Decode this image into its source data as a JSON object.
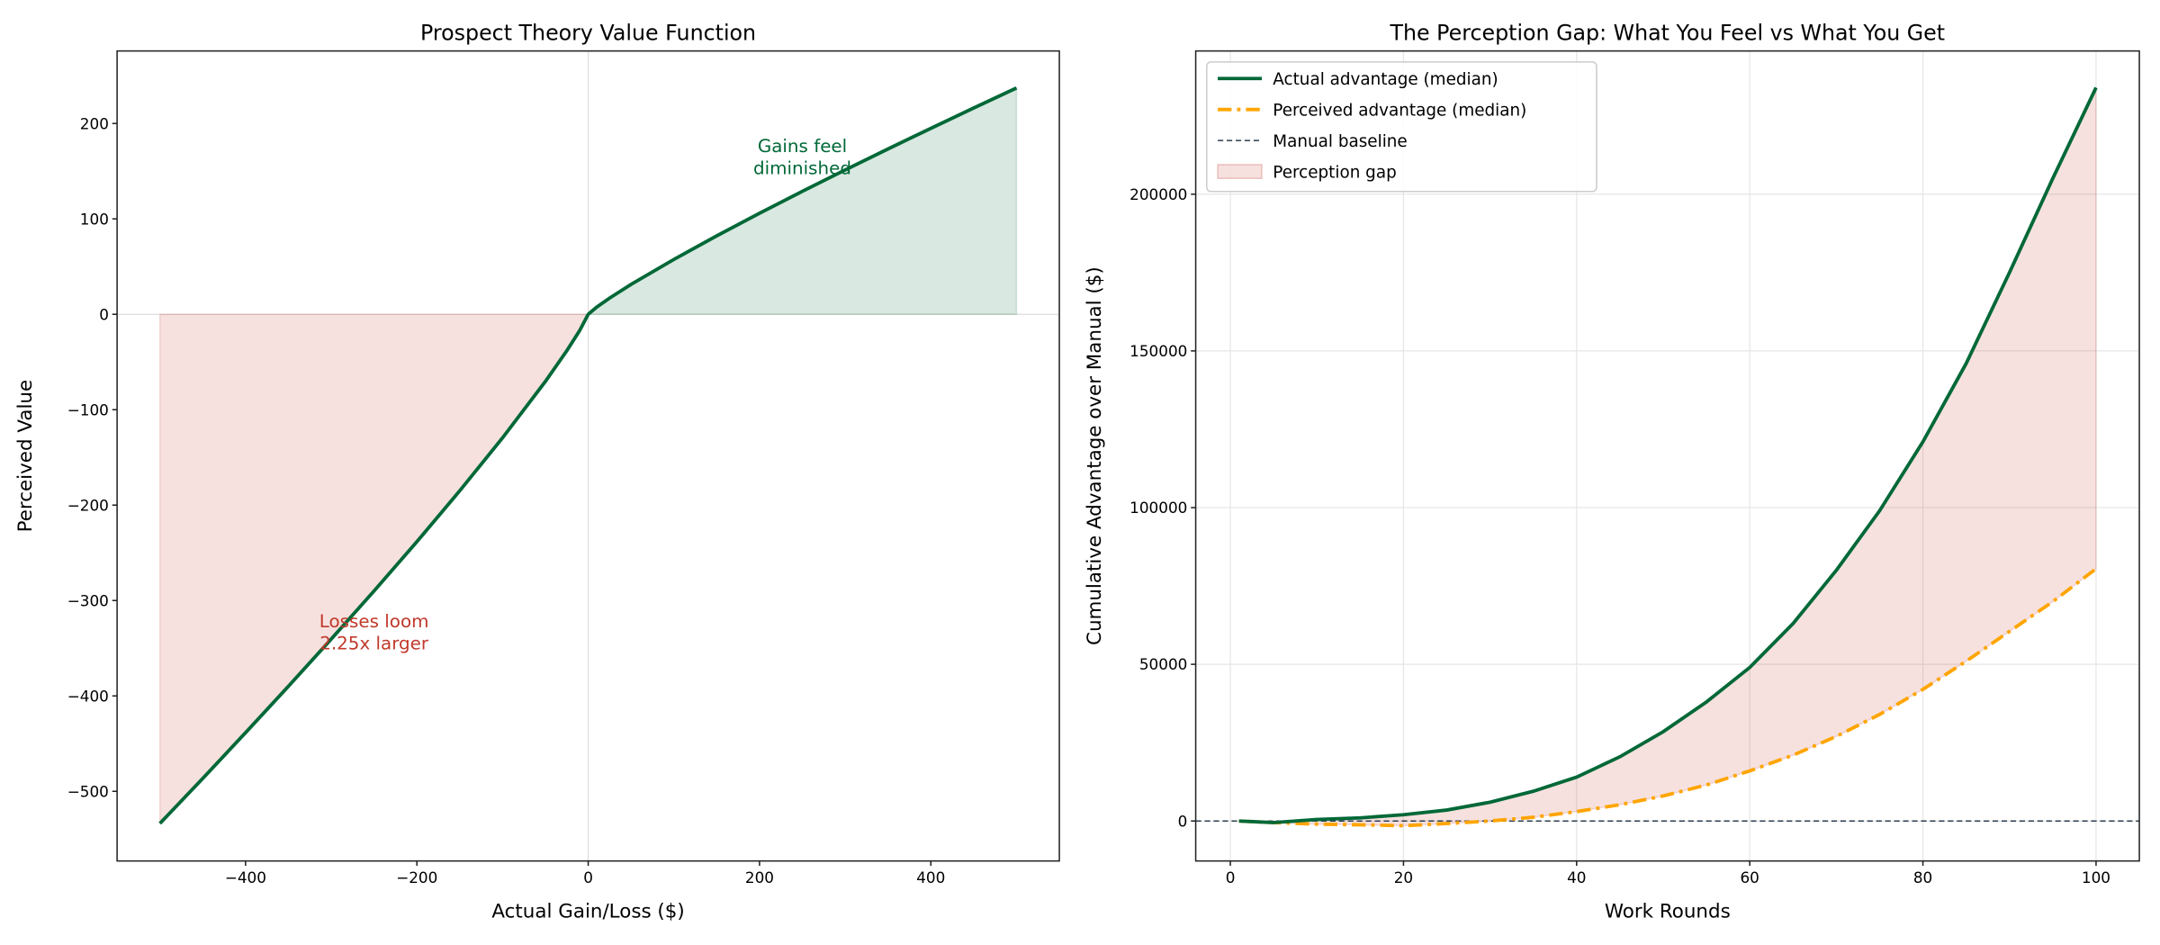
{
  "chart_data": [
    {
      "type": "line",
      "title": "Prospect Theory Value Function",
      "xlabel": "Actual Gain/Loss ($)",
      "ylabel": "Perceived Value",
      "xlim": [
        -550,
        550
      ],
      "ylim": [
        -573,
        276
      ],
      "xticks": [
        -400,
        -200,
        0,
        200,
        400
      ],
      "yticks": [
        -500,
        -400,
        -300,
        -200,
        -100,
        0,
        100,
        200
      ],
      "grid": false,
      "reference_lines": {
        "x": 0,
        "y": 0
      },
      "series": [
        {
          "x": [
            -500,
            -450,
            -400,
            -350,
            -300,
            -250,
            -200,
            -150,
            -100,
            -50,
            -25,
            -10,
            0,
            10,
            25,
            50,
            100,
            150,
            200,
            250,
            300,
            350,
            400,
            450,
            500
          ],
          "y": [
            -533.7,
            -486.5,
            -438.5,
            -389.9,
            -340.4,
            -290.0,
            -238.3,
            -185.0,
            -129.5,
            -70.4,
            -38.2,
            -17.1,
            0,
            7.6,
            17.0,
            31.3,
            57.5,
            82.2,
            105.9,
            128.9,
            151.3,
            173.3,
            194.9,
            216.2,
            237.2
          ],
          "color": "#006837"
        }
      ],
      "fills": {
        "loss_color": "#c0392b",
        "gain_color": "#006837"
      },
      "annotations": [
        {
          "text": "Gains feel\ndiminished",
          "lines": [
            "Gains feel",
            "diminished"
          ],
          "x": 250,
          "y": 170,
          "color": "#006837"
        },
        {
          "text": "Losses loom\n2.25x larger",
          "lines": [
            "Losses loom",
            "2.25x larger"
          ],
          "x": -250,
          "y": -328,
          "color": "#c0392b"
        }
      ]
    },
    {
      "type": "line",
      "title": "The Perception Gap: What You Feel vs What You Get",
      "xlabel": "Work Rounds",
      "ylabel": "Cumulative Advantage over Manual ($)",
      "xlim": [
        -4,
        105
      ],
      "ylim": [
        -12750,
        245700
      ],
      "xticks": [
        0,
        20,
        40,
        60,
        80,
        100
      ],
      "yticks": [
        0,
        50000,
        100000,
        150000,
        200000
      ],
      "grid": true,
      "legend_position": "top-left",
      "x": [
        1,
        5,
        10,
        15,
        20,
        25,
        30,
        35,
        40,
        45,
        50,
        55,
        60,
        65,
        70,
        75,
        80,
        85,
        90,
        95,
        100
      ],
      "series": [
        {
          "name": "Actual advantage (median)",
          "color": "#006837",
          "style": "solid",
          "values": [
            0,
            -500,
            500,
            1000,
            2000,
            3500,
            6000,
            9500,
            14000,
            20500,
            28500,
            38000,
            49000,
            63000,
            80000,
            99000,
            121000,
            146000,
            175000,
            205000,
            234000
          ]
        },
        {
          "name": "Perceived advantage (median)",
          "color": "#FFA500",
          "style": "dashdot",
          "values": [
            0,
            -500,
            -1000,
            -1200,
            -1500,
            -800,
            0,
            1200,
            3000,
            5200,
            8000,
            11500,
            16000,
            21000,
            27000,
            34000,
            42000,
            51000,
            60500,
            70000,
            80500
          ]
        }
      ],
      "baseline": {
        "name": "Manual baseline",
        "y": 0,
        "color": "#2c3e50",
        "style": "dashed"
      },
      "gap": {
        "name": "Perception gap",
        "color": "#c0392b"
      }
    }
  ]
}
